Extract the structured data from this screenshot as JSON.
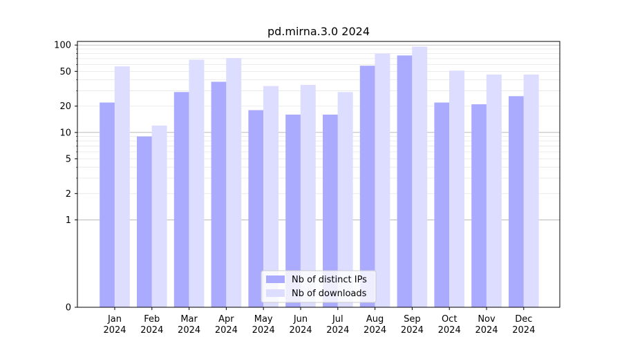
{
  "chart_data": {
    "type": "bar",
    "title": "pd.mirna.3.0 2024",
    "xlabel": "",
    "ylabel": "",
    "yscale": "symlog",
    "ylim": [
      0,
      110
    ],
    "yticks": [
      0,
      1,
      2,
      5,
      10,
      20,
      50,
      100
    ],
    "categories": [
      [
        "Jan",
        "2024"
      ],
      [
        "Feb",
        "2024"
      ],
      [
        "Mar",
        "2024"
      ],
      [
        "Apr",
        "2024"
      ],
      [
        "May",
        "2024"
      ],
      [
        "Jun",
        "2024"
      ],
      [
        "Jul",
        "2024"
      ],
      [
        "Aug",
        "2024"
      ],
      [
        "Sep",
        "2024"
      ],
      [
        "Oct",
        "2024"
      ],
      [
        "Nov",
        "2024"
      ],
      [
        "Dec",
        "2024"
      ]
    ],
    "series": [
      {
        "name": "Nb of distinct IPs",
        "color": "#aaaaff",
        "values": [
          22,
          9,
          29,
          38,
          18,
          16,
          16,
          58,
          76,
          22,
          21,
          26
        ]
      },
      {
        "name": "Nb of downloads",
        "color": "#ddddff",
        "values": [
          57,
          12,
          68,
          71,
          34,
          35,
          29,
          80,
          96,
          51,
          46,
          46
        ]
      }
    ],
    "legend_position": "lower center",
    "grid": true
  }
}
